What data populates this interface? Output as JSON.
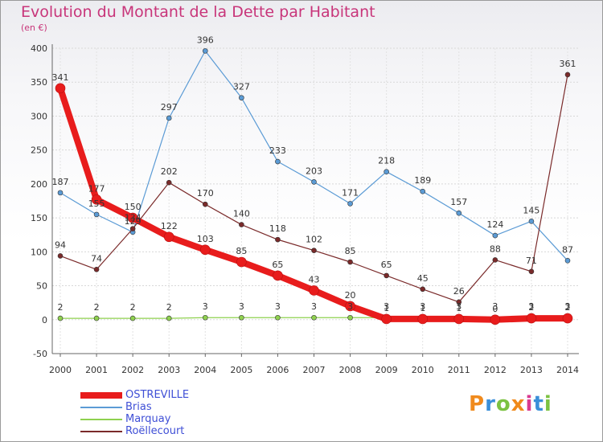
{
  "header": {
    "title": "Evolution du Montant de la Dette par Habitant",
    "subtitle": "(en €)"
  },
  "logo": {
    "text": "Proxiti",
    "colors": [
      "#f08a1c",
      "#3a8fd9",
      "#7cc242",
      "#f08a1c",
      "#d93a8f",
      "#3a8fd9",
      "#7cc242"
    ]
  },
  "chart_data": {
    "type": "line",
    "x": [
      "2000",
      "2001",
      "2002",
      "2003",
      "2004",
      "2005",
      "2006",
      "2007",
      "2008",
      "2009",
      "2010",
      "2011",
      "2012",
      "2013",
      "2014"
    ],
    "ylim": [
      -50,
      400
    ],
    "yticks": [
      -50,
      0,
      50,
      100,
      150,
      200,
      250,
      300,
      350,
      400
    ],
    "grid": true,
    "legend_position": "bottom-left",
    "series": [
      {
        "name": "OSTREVILLE",
        "color": "#e81c1c",
        "style": "thick",
        "values": [
          341,
          177,
          150,
          122,
          103,
          85,
          65,
          43,
          20,
          1,
          1,
          1,
          0,
          2,
          2
        ],
        "labels": [
          "341",
          "177",
          "150",
          "122",
          "103",
          "85",
          "65",
          "43",
          "20",
          "1",
          "1",
          "1",
          "0",
          "2",
          "2"
        ]
      },
      {
        "name": "Brias",
        "color": "#5b9bd5",
        "style": "thin",
        "values": [
          187,
          155,
          129,
          297,
          396,
          327,
          233,
          203,
          171,
          218,
          189,
          157,
          124,
          145,
          87
        ],
        "labels": [
          "187",
          "155",
          "129",
          "297",
          "396",
          "327",
          "233",
          "203",
          "171",
          "218",
          "189",
          "157",
          "124",
          "145",
          "87"
        ]
      },
      {
        "name": "Marquay",
        "color": "#8fd14f",
        "style": "thin",
        "values": [
          2,
          2,
          2,
          2,
          3,
          3,
          3,
          3,
          3,
          3,
          3,
          3,
          3,
          3,
          3
        ],
        "labels": [
          "2",
          "2",
          "2",
          "2",
          "3",
          "3",
          "3",
          "3",
          "3",
          "3",
          "3",
          "3",
          "3",
          "3",
          "3"
        ]
      },
      {
        "name": "Roëllecourt",
        "color": "#7a2a2a",
        "style": "thin",
        "values": [
          94,
          74,
          134,
          202,
          170,
          140,
          118,
          102,
          85,
          65,
          45,
          26,
          88,
          71,
          361
        ],
        "labels": [
          "94",
          "74",
          "134",
          "202",
          "170",
          "140",
          "118",
          "102",
          "85",
          "65",
          "45",
          "26",
          "88",
          "71",
          "361"
        ]
      }
    ]
  }
}
